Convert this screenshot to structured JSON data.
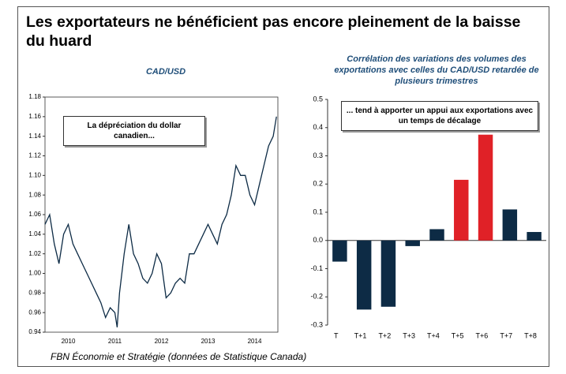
{
  "title": "Les exportateurs ne bénéficient pas encore pleinement de la baisse du huard",
  "source": "FBN Économie et Stratégie (données de Statistique Canada)",
  "chart_data": [
    {
      "type": "line",
      "title": "CAD/USD",
      "annotation": "La dépréciation du dollar canadien...",
      "x": [
        2010.0,
        2010.1,
        2010.2,
        2010.3,
        2010.4,
        2010.5,
        2010.6,
        2010.7,
        2010.8,
        2010.9,
        2011.0,
        2011.1,
        2011.2,
        2011.3,
        2011.4,
        2011.5,
        2011.55,
        2011.6,
        2011.7,
        2011.8,
        2011.9,
        2012.0,
        2012.1,
        2012.2,
        2012.3,
        2012.4,
        2012.5,
        2012.6,
        2012.7,
        2012.8,
        2012.9,
        2013.0,
        2013.1,
        2013.2,
        2013.3,
        2013.4,
        2013.5,
        2013.6,
        2013.7,
        2013.8,
        2013.9,
        2014.0,
        2014.1,
        2014.2,
        2014.3,
        2014.4,
        2014.5,
        2014.6,
        2014.7,
        2014.8,
        2014.9,
        2014.97
      ],
      "values": [
        1.05,
        1.06,
        1.03,
        1.01,
        1.04,
        1.05,
        1.03,
        1.02,
        1.01,
        1.0,
        0.99,
        0.98,
        0.97,
        0.955,
        0.965,
        0.96,
        0.945,
        0.98,
        1.02,
        1.05,
        1.02,
        1.01,
        0.995,
        0.99,
        1.0,
        1.02,
        1.01,
        0.975,
        0.98,
        0.99,
        0.995,
        0.99,
        1.02,
        1.02,
        1.03,
        1.04,
        1.05,
        1.04,
        1.03,
        1.05,
        1.06,
        1.08,
        1.11,
        1.1,
        1.1,
        1.08,
        1.07,
        1.09,
        1.11,
        1.13,
        1.14,
        1.16
      ],
      "color": "#0d2b45",
      "xlim": [
        2010,
        2015
      ],
      "ylim": [
        0.94,
        1.18
      ],
      "xticks": [
        {
          "value": 2010.5,
          "label": "2010"
        },
        {
          "value": 2011.5,
          "label": "2011"
        },
        {
          "value": 2012.5,
          "label": "2012"
        },
        {
          "value": 2013.5,
          "label": "2013"
        },
        {
          "value": 2014.5,
          "label": "2014"
        }
      ],
      "yticks": [
        0.94,
        0.96,
        0.98,
        {
          "value": 1,
          "label": "1.00"
        },
        1.02,
        1.04,
        1.06,
        1.08,
        {
          "value": 1.1,
          "label": "1.10"
        },
        1.12,
        1.14,
        1.16,
        1.18
      ]
    },
    {
      "type": "bar",
      "title": "Corrélation des variations des volumes des exportations avec celles du CAD/USD retardée de plusieurs trimestres",
      "annotation": "... tend à apporter un appui aux exportations avec un temps de décalage",
      "categories": [
        "T",
        "T+1",
        "T+2",
        "T+3",
        "T+4",
        "T+5",
        "T+6",
        "T+7",
        "T+8"
      ],
      "values": [
        -0.075,
        -0.245,
        -0.235,
        -0.02,
        0.04,
        0.215,
        0.375,
        0.11,
        0.03
      ],
      "colors": [
        "#0d2b45",
        "#0d2b45",
        "#0d2b45",
        "#0d2b45",
        "#0d2b45",
        "#e02127",
        "#e02127",
        "#0d2b45",
        "#0d2b45"
      ],
      "ylim": [
        -0.3,
        0.5
      ],
      "yticks": [
        -0.3,
        -0.2,
        -0.1,
        {
          "value": 0,
          "label": "0.0"
        },
        0.1,
        0.2,
        0.3,
        0.4,
        0.5
      ]
    }
  ]
}
